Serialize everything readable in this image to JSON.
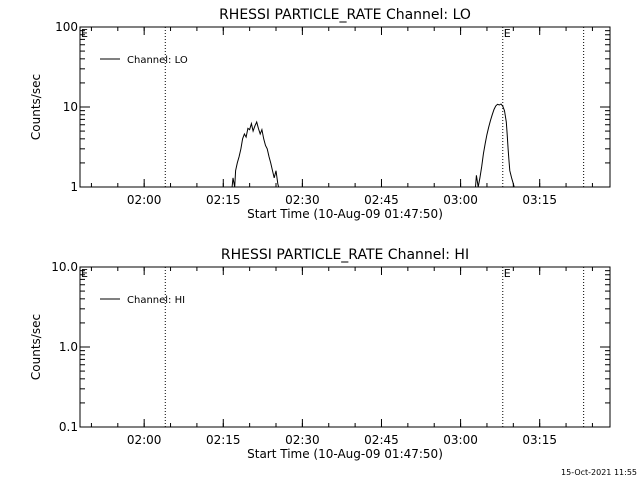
{
  "chart_data": [
    {
      "type": "line",
      "title": "RHESSI PARTICLE_RATE Channel: LO",
      "xlabel": "Start Time (10-Aug-09 01:47:50)",
      "ylabel": "Counts/sec",
      "y_scale": "log",
      "ylim": [
        1,
        100
      ],
      "y_ticks": [
        1,
        10,
        100
      ],
      "y_tick_labels": [
        "1",
        "10",
        "100"
      ],
      "xlim": [
        1.7972,
        3.4722
      ],
      "x_ticks": [
        2.0,
        2.25,
        2.5,
        2.75,
        3.0,
        3.25
      ],
      "x_tick_labels": [
        "02:00",
        "02:15",
        "02:30",
        "02:45",
        "03:00",
        "03:15"
      ],
      "grid": false,
      "legend_position": "top-left",
      "event_times": [
        2.0667,
        3.1333,
        3.3889
      ],
      "event_markers": [
        {
          "label": "E",
          "x": 1.7972
        },
        {
          "label": "E",
          "x": 3.1333
        }
      ],
      "series": [
        {
          "name": "Channel: LO",
          "segments": [
            {
              "x": [
                2.2778,
                2.2806,
                2.2861,
                2.2889,
                2.2944,
                2.3,
                2.3056,
                2.3111,
                2.3167,
                2.3222,
                2.3278,
                2.3333,
                2.3389,
                2.3444,
                2.35,
                2.3556,
                2.3611,
                2.3667,
                2.3722,
                2.3778,
                2.3833,
                2.3889,
                2.3944,
                2.4,
                2.4056,
                2.4111,
                2.4167,
                2.4222,
                2.425
              ],
              "y": [
                1.0,
                1.3,
                1.0,
                1.6,
                2.0,
                2.4,
                3.0,
                4.0,
                4.6,
                4.2,
                5.4,
                5.2,
                6.2,
                5.0,
                5.8,
                6.5,
                5.4,
                4.6,
                5.2,
                4.0,
                3.3,
                3.0,
                2.4,
                2.0,
                1.6,
                1.3,
                1.6,
                1.1,
                1.0
              ]
            },
            {
              "x": [
                3.0472,
                3.05,
                3.0556,
                3.0611,
                3.0667,
                3.0722,
                3.0778,
                3.0833,
                3.0889,
                3.0944,
                3.1,
                3.1056,
                3.1111,
                3.1167,
                3.1222,
                3.1278,
                3.1333,
                3.1389,
                3.1444,
                3.1472,
                3.15,
                3.1528,
                3.1556,
                3.1611,
                3.1667,
                3.1694
              ],
              "y": [
                1.0,
                1.4,
                1.0,
                1.3,
                1.8,
                2.6,
                3.5,
                4.5,
                5.6,
                6.8,
                8.0,
                9.3,
                10.3,
                10.8,
                10.6,
                10.9,
                10.2,
                9.0,
                6.5,
                4.5,
                3.0,
                2.2,
                1.6,
                1.3,
                1.1,
                1.0
              ]
            }
          ]
        }
      ]
    },
    {
      "type": "line",
      "title": "RHESSI PARTICLE_RATE Channel: HI",
      "xlabel": "Start Time (10-Aug-09 01:47:50)",
      "ylabel": "Counts/sec",
      "y_scale": "log",
      "ylim": [
        0.1,
        10
      ],
      "y_ticks": [
        0.1,
        1,
        10
      ],
      "y_tick_labels": [
        "0.1",
        "1.0",
        "10.0"
      ],
      "xlim": [
        1.7972,
        3.4722
      ],
      "x_ticks": [
        2.0,
        2.25,
        2.5,
        2.75,
        3.0,
        3.25
      ],
      "x_tick_labels": [
        "02:00",
        "02:15",
        "02:30",
        "02:45",
        "03:00",
        "03:15"
      ],
      "grid": false,
      "legend_position": "top-left",
      "event_times": [
        2.0667,
        3.1333,
        3.3889
      ],
      "event_markers": [
        {
          "label": "E",
          "x": 1.7972
        },
        {
          "label": "E",
          "x": 3.1333
        }
      ],
      "series": [
        {
          "name": "Channel: HI",
          "segments": []
        }
      ]
    }
  ],
  "footer": {
    "timestamp": "15-Oct-2021 11:55"
  }
}
